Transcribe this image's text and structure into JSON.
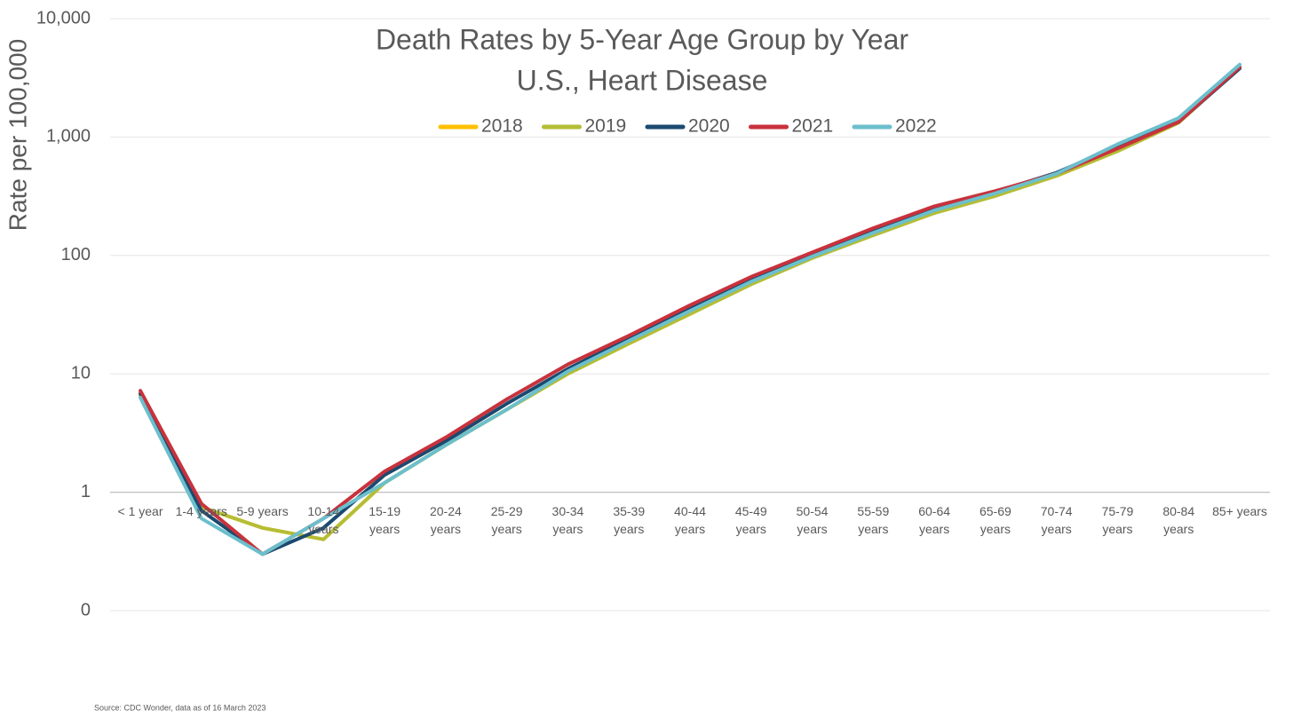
{
  "chart_data": {
    "type": "line",
    "title": "Death Rates by 5-Year Age Group by Year",
    "subtitle": "U.S., Heart Disease",
    "y_label": "Rate per 100,000",
    "source": "Source: CDC Wonder, data as of 16 March 2023",
    "categories": [
      "< 1 year",
      "1-4 years",
      "5-9 years",
      "10-14 years",
      "15-19 years",
      "20-24 years",
      "25-29 years",
      "30-34 years",
      "35-39 years",
      "40-44 years",
      "45-49 years",
      "50-54 years",
      "55-59 years",
      "60-64 years",
      "65-69 years",
      "70-74 years",
      "75-79 years",
      "80-84 years",
      "85+ years"
    ],
    "log_scale": true,
    "grid": true,
    "legend": "top",
    "ylim": [
      0.1,
      10000
    ],
    "yticks": [
      {
        "value": 0.1,
        "label": "0"
      },
      1,
      10,
      100,
      {
        "value": 1000,
        "label": "1,000"
      },
      {
        "value": 10000,
        "label": "10,000"
      }
    ],
    "series": [
      {
        "name": "2018",
        "color": "#ffc000",
        "values": [
          6.8,
          0.75,
          0.5,
          0.4,
          1.2,
          2.5,
          5.0,
          10,
          18,
          32,
          58,
          95,
          150,
          230,
          320,
          470,
          760,
          1330,
          3900
        ]
      },
      {
        "name": "2019",
        "color": "#b5bd35",
        "values": [
          6.6,
          0.75,
          0.5,
          0.4,
          1.2,
          2.5,
          5.0,
          10,
          18,
          32,
          57,
          95,
          148,
          228,
          318,
          470,
          760,
          1320,
          3880
        ]
      },
      {
        "name": "2020",
        "color": "#1b4a6f",
        "values": [
          6.8,
          0.7,
          0.3,
          0.5,
          1.4,
          2.7,
          5.6,
          11,
          20,
          36,
          63,
          102,
          165,
          250,
          345,
          500,
          830,
          1340,
          3800
        ]
      },
      {
        "name": "2021",
        "color": "#c8323c",
        "values": [
          7.2,
          0.8,
          0.3,
          0.6,
          1.5,
          2.9,
          6.1,
          12,
          21,
          38,
          66,
          106,
          170,
          260,
          350,
          490,
          800,
          1340,
          3900
        ]
      },
      {
        "name": "2022",
        "color": "#6cbfcc",
        "values": [
          6.3,
          0.6,
          0.3,
          0.6,
          1.2,
          2.5,
          5.0,
          10.5,
          19,
          34,
          60,
          98,
          155,
          240,
          335,
          490,
          870,
          1450,
          4100
        ]
      }
    ]
  }
}
